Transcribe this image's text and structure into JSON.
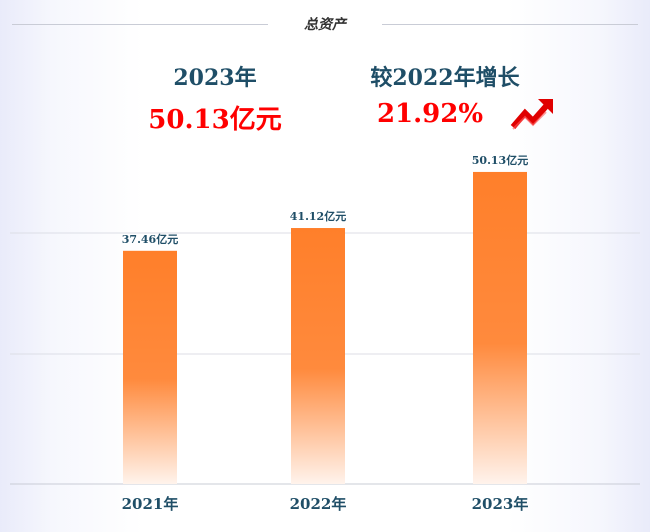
{
  "header": {
    "title": "总资产"
  },
  "stats": {
    "year_label": "2023年",
    "total_value": "50.13亿元",
    "growth_label": "较2022年增长",
    "growth_value": "21.92%"
  },
  "icons": {
    "growth": "trend-up-arrow-icon"
  },
  "colors": {
    "bar": "#ff7f2a",
    "accent": "#ff0000",
    "text": "#1f4e67",
    "grid": "#d6d8e0"
  },
  "chart_data": {
    "type": "bar",
    "categories": [
      "2021年",
      "2022年",
      "2023年"
    ],
    "values": [
      37.46,
      41.12,
      50.13
    ],
    "data_labels": [
      "37.46亿元",
      "41.12亿元",
      "50.13亿元"
    ],
    "title": "总资产",
    "xlabel": "",
    "ylabel": "",
    "ylim": [
      0,
      55
    ],
    "grid": true
  }
}
